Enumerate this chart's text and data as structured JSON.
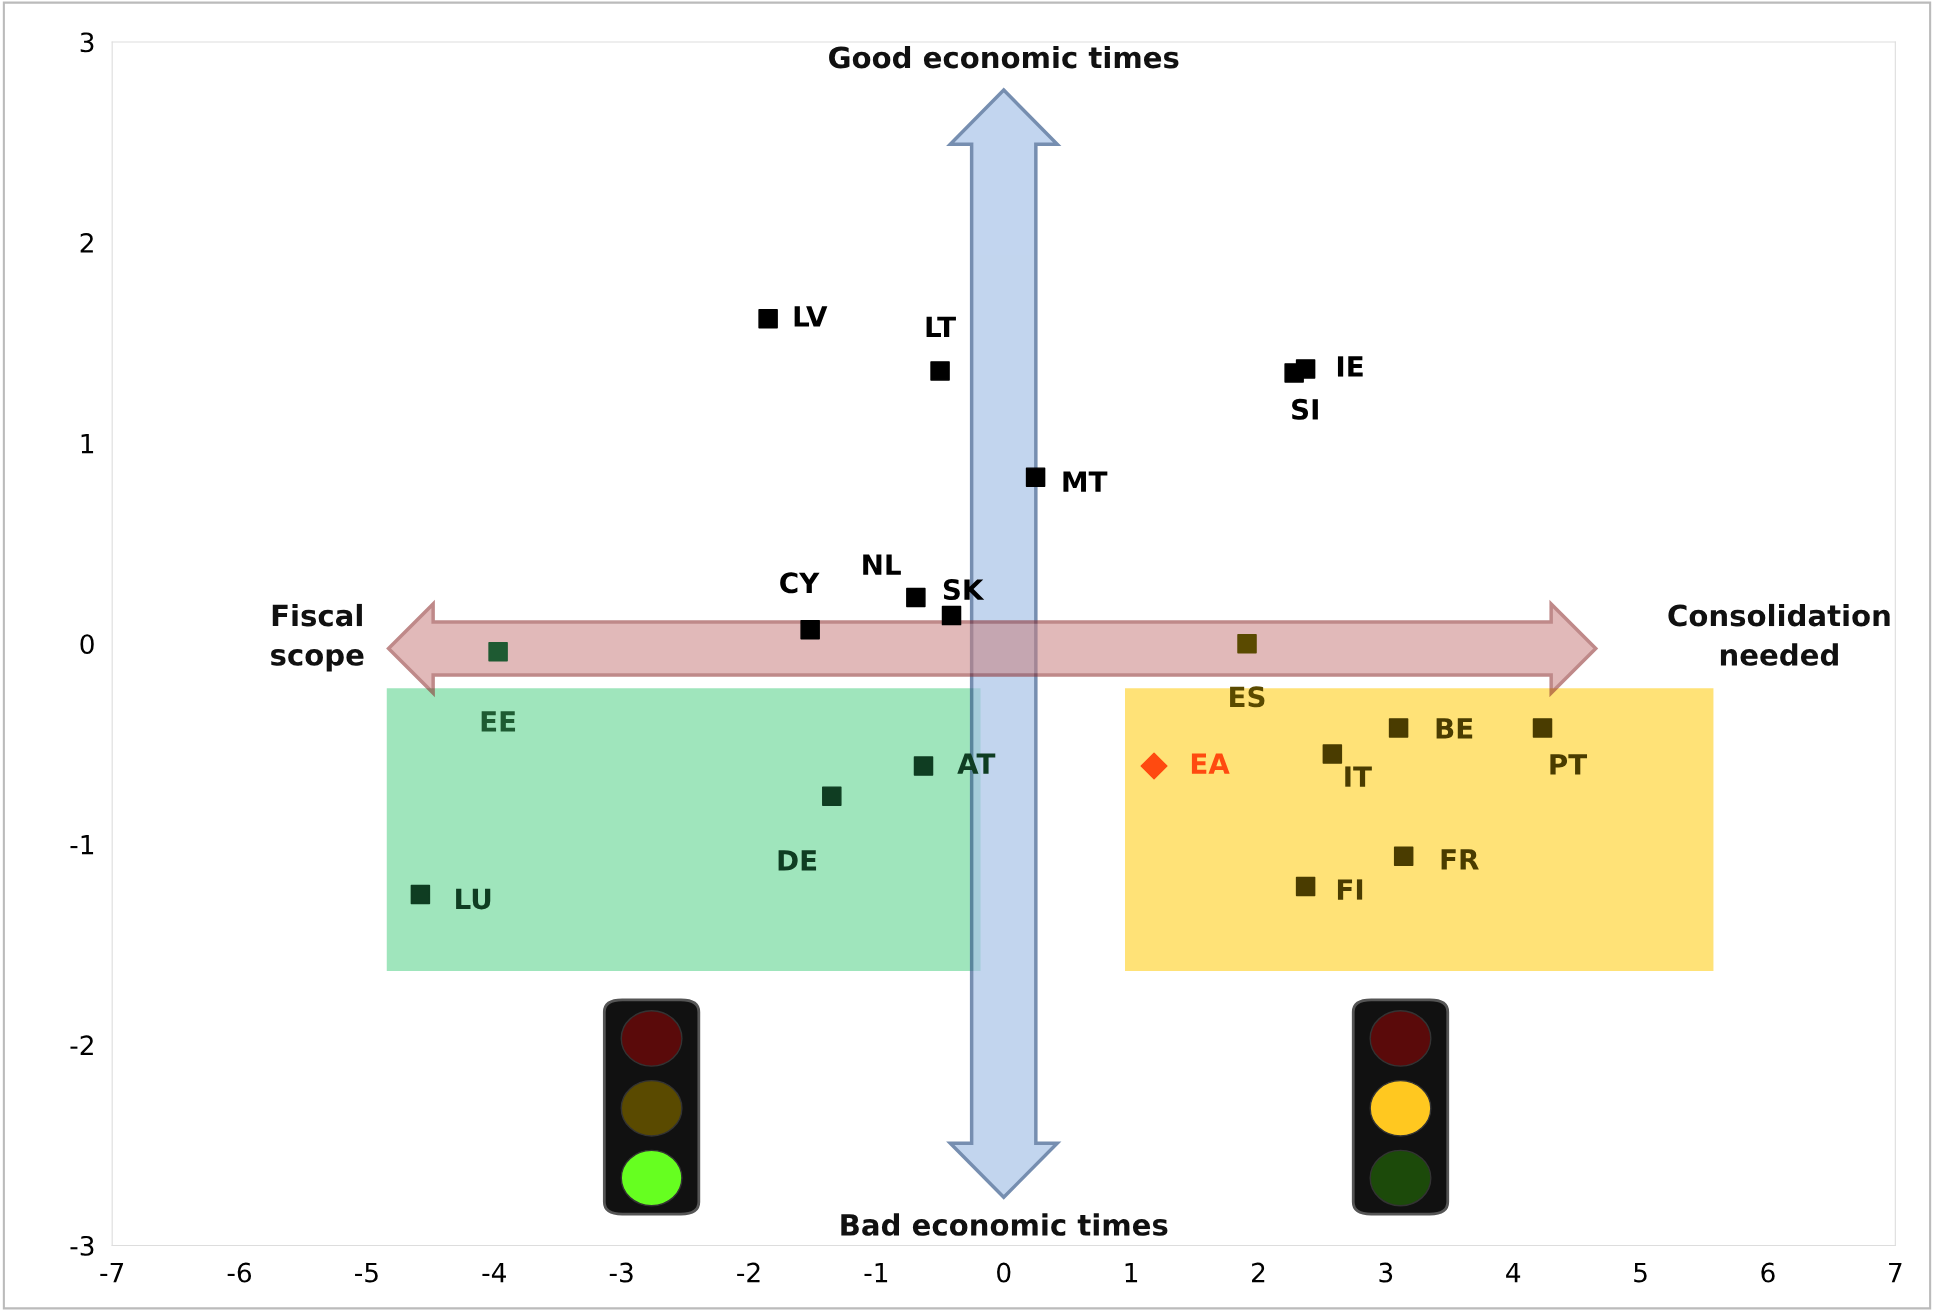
{
  "chart_data": {
    "type": "scatter",
    "xlim": [
      -7,
      7
    ],
    "ylim": [
      -3,
      3
    ],
    "xticks": [
      -7,
      -6,
      -5,
      -4,
      -3,
      -2,
      -1,
      0,
      1,
      2,
      3,
      4,
      5,
      6,
      7
    ],
    "yticks": [
      -3,
      -2,
      -1,
      0,
      1,
      2,
      3
    ],
    "grid": false,
    "legend": false,
    "marker": "square",
    "annotations": [
      "Good economic times",
      "Bad economic times",
      "Fiscal\nscope",
      "Consolidation\nneeded"
    ],
    "series": [
      {
        "name": "LV",
        "color": "#000000",
        "x": [
          -1.85
        ],
        "values": [
          1.62
        ]
      },
      {
        "name": "LT",
        "color": "#000000",
        "x": [
          -0.5
        ],
        "values": [
          1.36
        ]
      },
      {
        "name": "IE",
        "color": "#000000",
        "x": [
          2.37
        ],
        "values": [
          1.37
        ]
      },
      {
        "name": "SI",
        "color": "#000000",
        "x": [
          2.28
        ],
        "values": [
          1.35
        ]
      },
      {
        "name": "MT",
        "color": "#000000",
        "x": [
          0.25
        ],
        "values": [
          0.83
        ]
      },
      {
        "name": "NL",
        "color": "#000000",
        "x": [
          -0.69
        ],
        "values": [
          0.23
        ]
      },
      {
        "name": "SK",
        "color": "#000000",
        "x": [
          -0.41
        ],
        "values": [
          0.14
        ]
      },
      {
        "name": "CY",
        "color": "#000000",
        "x": [
          -1.52
        ],
        "values": [
          0.07
        ]
      },
      {
        "name": "EE",
        "color": "#1e5a32",
        "x": [
          -3.97
        ],
        "values": [
          -0.04
        ]
      },
      {
        "name": "ES",
        "color": "#5a4a00",
        "x": [
          1.91
        ],
        "values": [
          0.0
        ]
      },
      {
        "name": "AT",
        "color": "#0f3d22",
        "x": [
          -0.63
        ],
        "values": [
          -0.61
        ]
      },
      {
        "name": "DE",
        "color": "#0f3d22",
        "x": [
          -1.35
        ],
        "values": [
          -0.76
        ]
      },
      {
        "name": "LU",
        "color": "#0f3d22",
        "x": [
          -4.58
        ],
        "values": [
          -1.25
        ]
      },
      {
        "name": "EA",
        "color": "#ff4a10",
        "x": [
          1.18
        ],
        "values": [
          -0.61
        ],
        "marker": "diamond"
      },
      {
        "name": "IT",
        "color": "#4a3c00",
        "x": [
          2.58
        ],
        "values": [
          -0.55
        ]
      },
      {
        "name": "BE",
        "color": "#4a3c00",
        "x": [
          3.1
        ],
        "values": [
          -0.42
        ]
      },
      {
        "name": "PT",
        "color": "#4a3c00",
        "x": [
          4.23
        ],
        "values": [
          -0.42
        ]
      },
      {
        "name": "FR",
        "color": "#4a3c00",
        "x": [
          3.14
        ],
        "values": [
          -1.06
        ]
      },
      {
        "name": "FI",
        "color": "#4a3c00",
        "x": [
          2.37
        ],
        "values": [
          -1.21
        ]
      }
    ]
  }
}
